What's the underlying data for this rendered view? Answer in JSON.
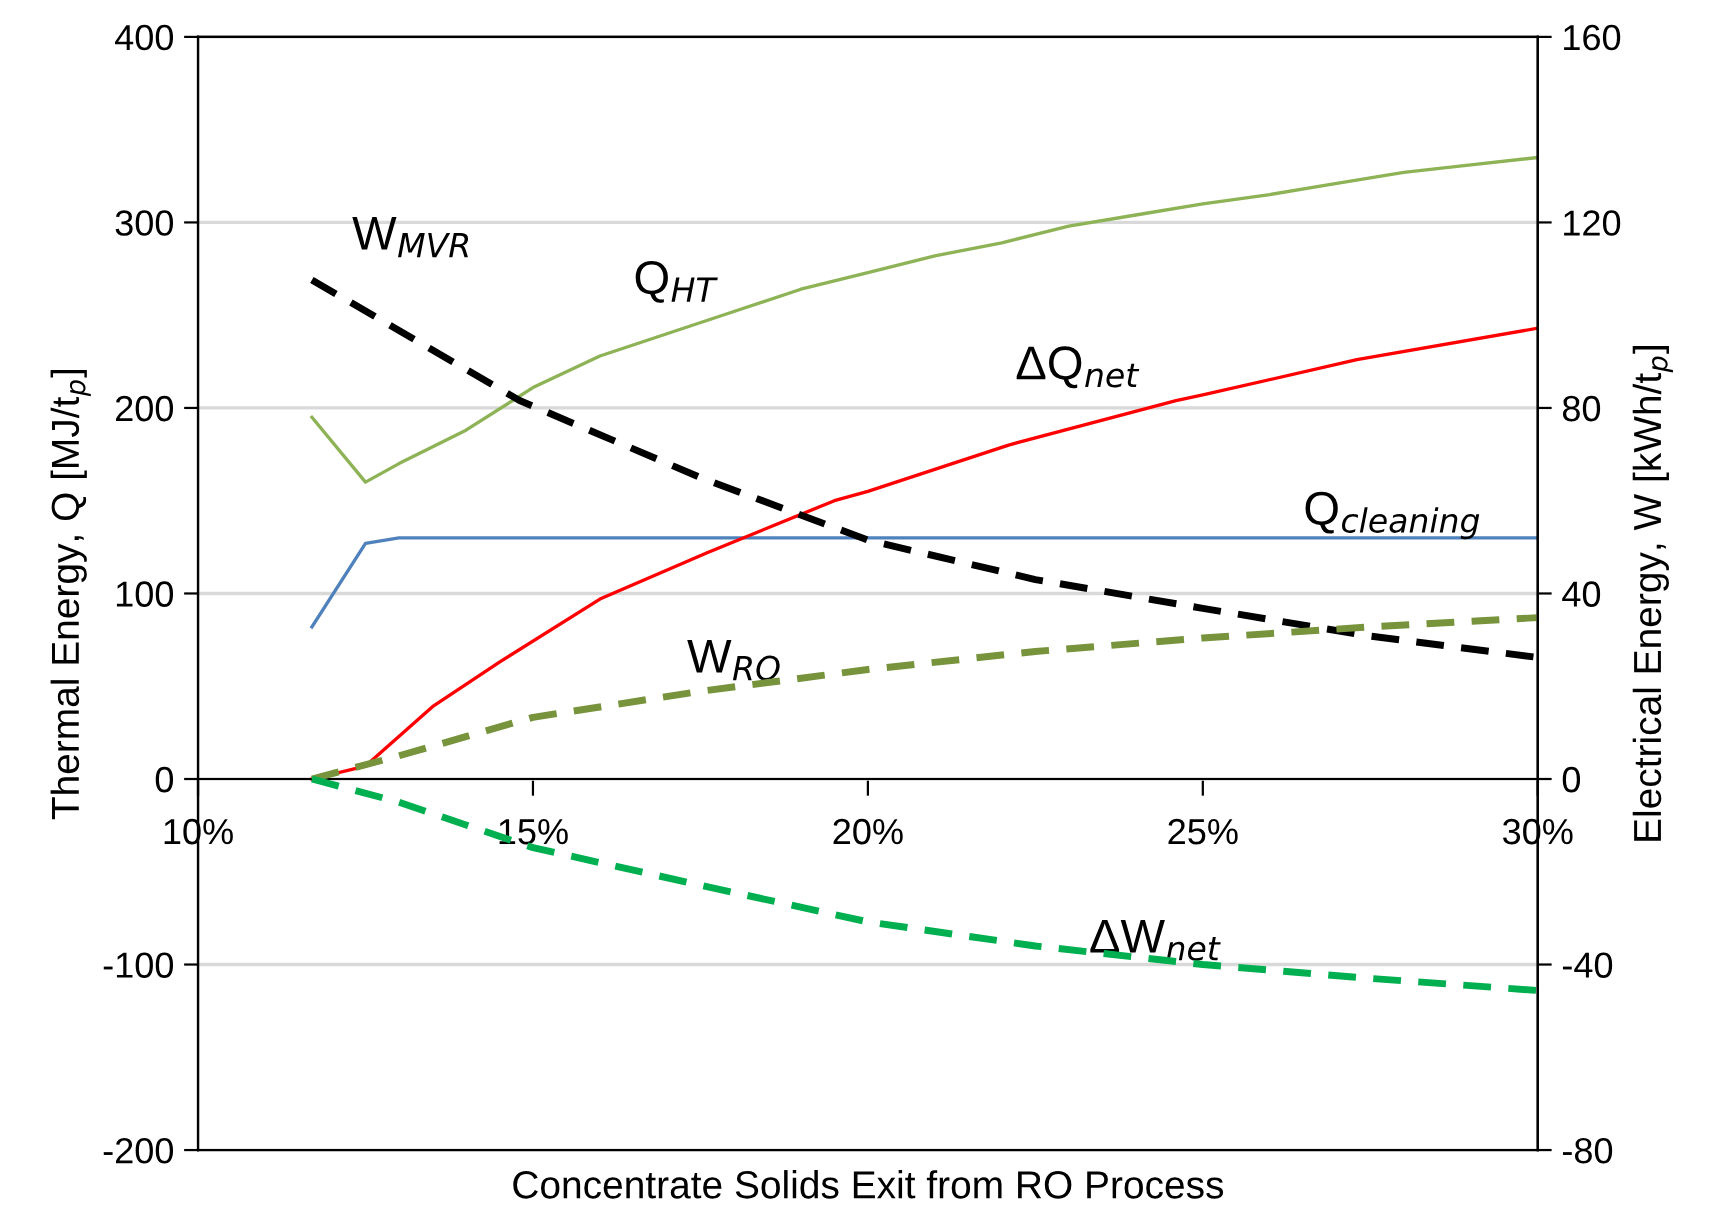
{
  "chart_data": {
    "type": "line",
    "xlabel": "Concentrate Solids Exit from RO Process",
    "ylabel": "Thermal Energy, Q [MJ/t$_{p}$]",
    "y2label": "Electrical Energy, W [kWh/t$_{p}$]",
    "xlim": [
      10,
      30
    ],
    "xticks": [
      {
        "value": 10,
        "label": "10%"
      },
      {
        "value": 15,
        "label": "15%"
      },
      {
        "value": 20,
        "label": "20%"
      },
      {
        "value": 25,
        "label": "25%"
      },
      {
        "value": 30,
        "label": "30%"
      }
    ],
    "ylim": [
      -200,
      400
    ],
    "yticks": [
      -200,
      -100,
      0,
      100,
      200,
      300,
      400
    ],
    "y2lim": [
      -80,
      160
    ],
    "y2ticks": [
      -80,
      -40,
      0,
      40,
      80,
      120,
      160
    ],
    "grid": "y",
    "legend": false,
    "series": [
      {
        "name": "Q$_{HT}$",
        "color": "#8db356",
        "line_style": "solid",
        "x": [
          11.7,
          12.5,
          13,
          14,
          15,
          16,
          17,
          18,
          19,
          20,
          21,
          22,
          23,
          24,
          25,
          26,
          27,
          28,
          29,
          30
        ],
        "values": [
          195,
          160,
          170,
          188,
          211,
          228,
          240,
          252,
          264,
          273,
          282,
          289,
          298,
          304,
          310,
          315,
          321,
          327,
          331,
          335
        ]
      },
      {
        "name": "Q$_{cleaning}$",
        "color": "#4f81bd",
        "line_style": "solid",
        "x": [
          11.7,
          12.5,
          13,
          30
        ],
        "values": [
          82,
          127,
          130,
          130
        ]
      },
      {
        "name": "ΔQ$_{net}$",
        "color": "#ff0000",
        "line_style": "solid",
        "x": [
          11.7,
          12.5,
          13.5,
          14.5,
          16,
          17.6,
          19.5,
          20,
          22.1,
          24.6,
          25,
          27.3,
          30
        ],
        "values": [
          0,
          7,
          39,
          63,
          97,
          122,
          150,
          155,
          180,
          204,
          207,
          226,
          243
        ]
      },
      {
        "name": "W$_{MVR}$",
        "color": "#000000",
        "line_style": "dashed",
        "axis": "y2",
        "x": [
          11.7,
          14.8,
          17.5,
          20,
          22.5,
          25,
          27.5,
          30
        ],
        "values": [
          107.6,
          81.6,
          65,
          51.5,
          43,
          36.8,
          30.8,
          26.2
        ]
      },
      {
        "name": "W$_{RO}$",
        "color": "#77933c",
        "line_style": "dashed",
        "axis": "y2",
        "x": [
          11.7,
          13,
          15,
          17.5,
          20,
          22.5,
          25,
          27.5,
          30
        ],
        "values": [
          0,
          5,
          13.3,
          18.9,
          23.6,
          27.5,
          30.4,
          32.8,
          34.8
        ]
      },
      {
        "name": "ΔW$_{net}$",
        "color": "#00b050",
        "line_style": "dashed",
        "axis": "y2",
        "x": [
          11.7,
          13,
          15,
          17.5,
          20,
          22.5,
          25,
          27.5,
          30
        ],
        "values": [
          0,
          -5,
          -14.8,
          -22.9,
          -30.8,
          -36,
          -40,
          -43,
          -45.6
        ]
      }
    ]
  }
}
